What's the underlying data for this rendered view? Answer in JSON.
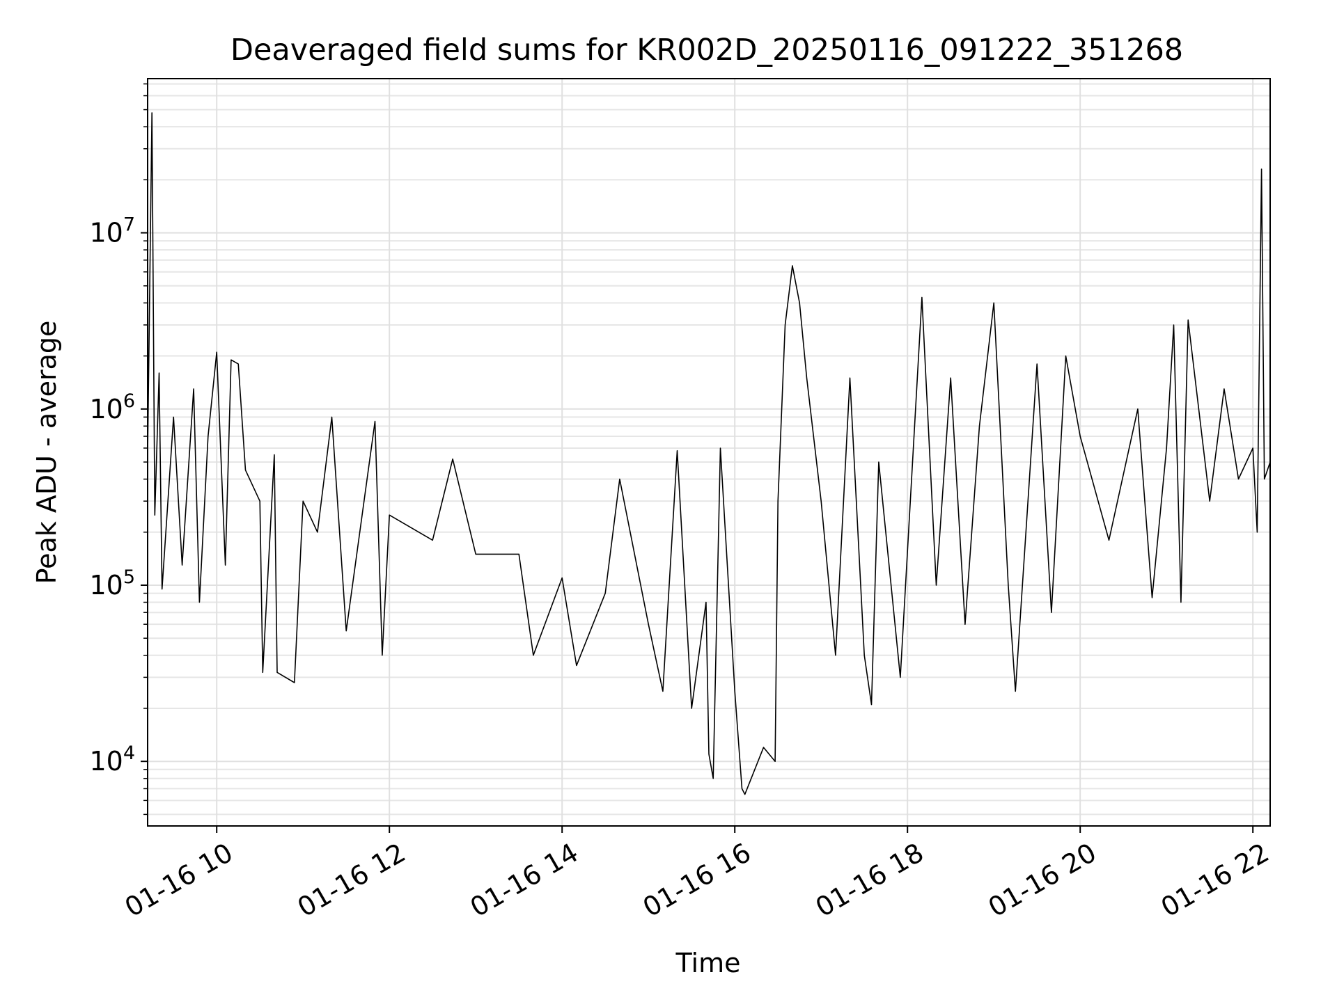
{
  "chart_data": {
    "type": "line",
    "title": "Deaveraged field sums for KR002D_20250116_091222_351268",
    "xlabel": "Time",
    "ylabel": "Peak ADU - average",
    "x_ticks": [
      "01-16 10",
      "01-16 12",
      "01-16 14",
      "01-16 16",
      "01-16 18",
      "01-16 20",
      "01-16 22"
    ],
    "y_ticks": [
      {
        "base": "10",
        "exp": "4"
      },
      {
        "base": "10",
        "exp": "5"
      },
      {
        "base": "10",
        "exp": "6"
      },
      {
        "base": "10",
        "exp": "7"
      }
    ],
    "xlim": [
      "2025-01-16 09:12",
      "2025-01-16 22:12"
    ],
    "ylim": [
      4300,
      75000000
    ],
    "y_scale": "log",
    "grid": true,
    "line_color": "#000000",
    "series": [
      {
        "points": [
          [
            "2025-01-16 09:12",
            550000
          ],
          [
            "2025-01-16 09:15",
            48000000
          ],
          [
            "2025-01-16 09:17",
            250000
          ],
          [
            "2025-01-16 09:20",
            1600000
          ],
          [
            "2025-01-16 09:22",
            95000
          ],
          [
            "2025-01-16 09:30",
            900000
          ],
          [
            "2025-01-16 09:36",
            130000
          ],
          [
            "2025-01-16 09:44",
            1300000
          ],
          [
            "2025-01-16 09:48",
            80000
          ],
          [
            "2025-01-16 09:54",
            700000
          ],
          [
            "2025-01-16 10:00",
            2100000
          ],
          [
            "2025-01-16 10:06",
            130000
          ],
          [
            "2025-01-16 10:10",
            1900000
          ],
          [
            "2025-01-16 10:15",
            1800000
          ],
          [
            "2025-01-16 10:20",
            450000
          ],
          [
            "2025-01-16 10:30",
            300000
          ],
          [
            "2025-01-16 10:32",
            32000
          ],
          [
            "2025-01-16 10:40",
            550000
          ],
          [
            "2025-01-16 10:42",
            32000
          ],
          [
            "2025-01-16 10:54",
            28000
          ],
          [
            "2025-01-16 11:00",
            300000
          ],
          [
            "2025-01-16 11:10",
            200000
          ],
          [
            "2025-01-16 11:20",
            900000
          ],
          [
            "2025-01-16 11:30",
            55000
          ],
          [
            "2025-01-16 11:50",
            850000
          ],
          [
            "2025-01-16 11:55",
            40000
          ],
          [
            "2025-01-16 12:00",
            250000
          ],
          [
            "2025-01-16 12:30",
            180000
          ],
          [
            "2025-01-16 12:44",
            520000
          ],
          [
            "2025-01-16 13:00",
            150000
          ],
          [
            "2025-01-16 13:30",
            150000
          ],
          [
            "2025-01-16 13:40",
            40000
          ],
          [
            "2025-01-16 14:00",
            110000
          ],
          [
            "2025-01-16 14:10",
            35000
          ],
          [
            "2025-01-16 14:30",
            90000
          ],
          [
            "2025-01-16 14:40",
            400000
          ],
          [
            "2025-01-16 15:00",
            60000
          ],
          [
            "2025-01-16 15:10",
            25000
          ],
          [
            "2025-01-16 15:20",
            580000
          ],
          [
            "2025-01-16 15:30",
            20000
          ],
          [
            "2025-01-16 15:40",
            80000
          ],
          [
            "2025-01-16 15:42",
            11000
          ],
          [
            "2025-01-16 15:45",
            8000
          ],
          [
            "2025-01-16 15:50",
            600000
          ],
          [
            "2025-01-16 16:00",
            25000
          ],
          [
            "2025-01-16 16:05",
            7000
          ],
          [
            "2025-01-16 16:07",
            6500
          ],
          [
            "2025-01-16 16:20",
            12000
          ],
          [
            "2025-01-16 16:28",
            10000
          ],
          [
            "2025-01-16 16:30",
            300000
          ],
          [
            "2025-01-16 16:35",
            3000000
          ],
          [
            "2025-01-16 16:40",
            6500000
          ],
          [
            "2025-01-16 16:45",
            4000000
          ],
          [
            "2025-01-16 16:50",
            1500000
          ],
          [
            "2025-01-16 17:00",
            300000
          ],
          [
            "2025-01-16 17:10",
            40000
          ],
          [
            "2025-01-16 17:20",
            1500000
          ],
          [
            "2025-01-16 17:30",
            40000
          ],
          [
            "2025-01-16 17:35",
            21000
          ],
          [
            "2025-01-16 17:40",
            500000
          ],
          [
            "2025-01-16 17:55",
            30000
          ],
          [
            "2025-01-16 18:10",
            4300000
          ],
          [
            "2025-01-16 18:20",
            100000
          ],
          [
            "2025-01-16 18:30",
            1500000
          ],
          [
            "2025-01-16 18:40",
            60000
          ],
          [
            "2025-01-16 18:50",
            800000
          ],
          [
            "2025-01-16 19:00",
            4000000
          ],
          [
            "2025-01-16 19:10",
            100000
          ],
          [
            "2025-01-16 19:15",
            25000
          ],
          [
            "2025-01-16 19:30",
            1800000
          ],
          [
            "2025-01-16 19:40",
            70000
          ],
          [
            "2025-01-16 19:50",
            2000000
          ],
          [
            "2025-01-16 20:00",
            700000
          ],
          [
            "2025-01-16 20:20",
            180000
          ],
          [
            "2025-01-16 20:40",
            1000000
          ],
          [
            "2025-01-16 20:50",
            85000
          ],
          [
            "2025-01-16 21:00",
            600000
          ],
          [
            "2025-01-16 21:05",
            3000000
          ],
          [
            "2025-01-16 21:10",
            80000
          ],
          [
            "2025-01-16 21:15",
            3200000
          ],
          [
            "2025-01-16 21:30",
            300000
          ],
          [
            "2025-01-16 21:40",
            1300000
          ],
          [
            "2025-01-16 21:50",
            400000
          ],
          [
            "2025-01-16 22:00",
            600000
          ],
          [
            "2025-01-16 22:03",
            200000
          ],
          [
            "2025-01-16 22:06",
            23000000
          ],
          [
            "2025-01-16 22:08",
            400000
          ],
          [
            "2025-01-16 22:12",
            500000
          ]
        ]
      }
    ]
  }
}
